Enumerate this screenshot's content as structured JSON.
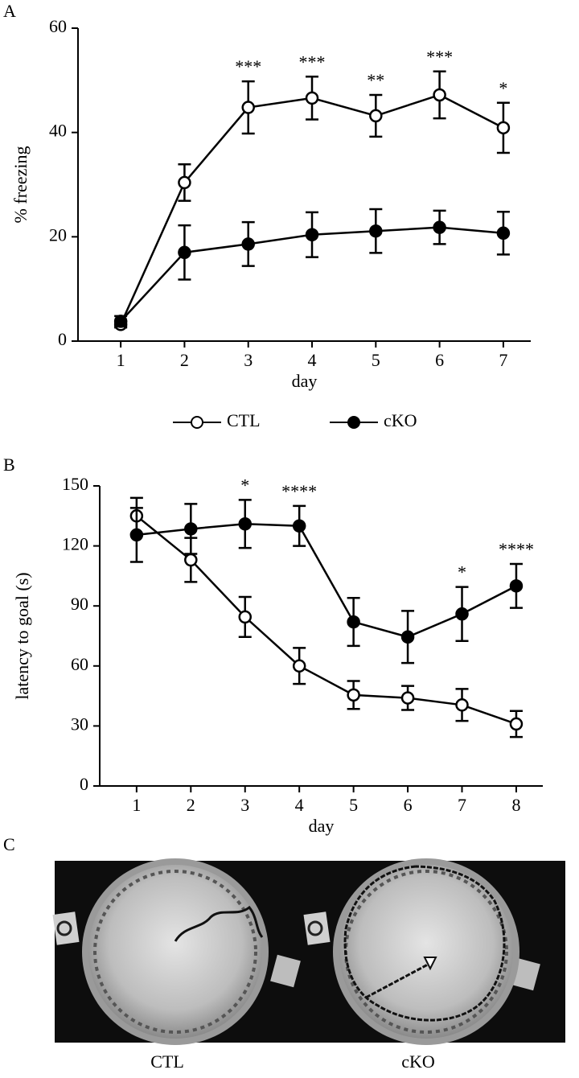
{
  "panel_labels": [
    "A",
    "B",
    "C"
  ],
  "photo_captions": [
    "CTL",
    "cKO"
  ],
  "chart_data": [
    {
      "type": "line",
      "xlabel": "day",
      "ylabel": "% freezing",
      "x": [
        1,
        2,
        3,
        4,
        5,
        6,
        7
      ],
      "xlim": [
        0.33,
        7.43
      ],
      "xticks": [
        1,
        2,
        3,
        4,
        5,
        6,
        7
      ],
      "ylim": [
        0,
        60
      ],
      "yticks": [
        0,
        20,
        40,
        60
      ],
      "legend": "bottom",
      "series": [
        {
          "name": "CTL",
          "color": "#000000",
          "marker": "open",
          "values": [
            3.2,
            30.4,
            44.8,
            46.6,
            43.2,
            47.2,
            40.9
          ],
          "errors": [
            0.6,
            3.5,
            5.0,
            4.1,
            4.0,
            4.5,
            4.8
          ]
        },
        {
          "name": "cKO",
          "color": "#000000",
          "marker": "filled",
          "values": [
            3.8,
            17.0,
            18.6,
            20.4,
            21.1,
            21.8,
            20.7
          ],
          "errors": [
            1.0,
            5.2,
            4.2,
            4.3,
            4.2,
            3.2,
            4.1
          ]
        }
      ],
      "annotations": [
        {
          "x": 3,
          "text": "***"
        },
        {
          "x": 4,
          "text": "***"
        },
        {
          "x": 5,
          "text": "**"
        },
        {
          "x": 6,
          "text": "***"
        },
        {
          "x": 7,
          "text": "*"
        }
      ]
    },
    {
      "type": "line",
      "xlabel": "day",
      "ylabel": "latency to goal (s)",
      "x": [
        1,
        2,
        3,
        4,
        5,
        6,
        7,
        8
      ],
      "xlim": [
        0.32,
        8.49
      ],
      "xticks": [
        1,
        2,
        3,
        4,
        5,
        6,
        7,
        8
      ],
      "ylim": [
        0,
        150
      ],
      "yticks": [
        0,
        30,
        60,
        90,
        120,
        150
      ],
      "series": [
        {
          "color": "#000000",
          "marker": "open",
          "values": [
            135,
            113,
            84.5,
            60,
            45.5,
            44,
            40.5,
            31
          ],
          "errors": [
            9,
            11,
            10,
            9,
            7,
            6,
            8,
            6.5
          ]
        },
        {
          "color": "#000000",
          "marker": "filled",
          "values": [
            125.5,
            128.5,
            131,
            130,
            82,
            74.5,
            86,
            100
          ],
          "errors": [
            13.5,
            12.5,
            12,
            10,
            12,
            13,
            13.5,
            11
          ]
        }
      ],
      "annotations": [
        {
          "x": 3,
          "text": "*"
        },
        {
          "x": 4,
          "text": "****"
        },
        {
          "x": 7,
          "text": "*"
        },
        {
          "x": 8,
          "text": "****"
        }
      ]
    }
  ]
}
